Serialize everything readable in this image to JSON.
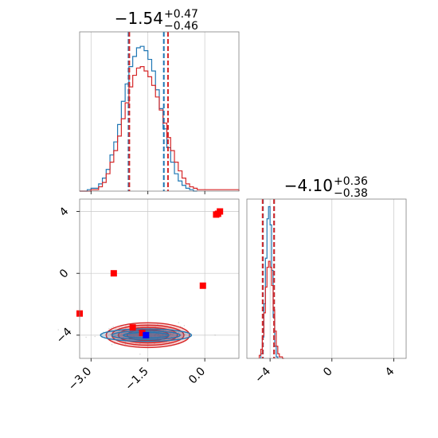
{
  "figure": {
    "kind": "corner-plot"
  },
  "titles": {
    "p1": {
      "median": "−1.54",
      "upper": "+0.47",
      "lower": "−0.46"
    },
    "p2": {
      "median": "−4.10",
      "upper": "+0.36",
      "lower": "−0.38"
    }
  },
  "colors": {
    "blue": "#1f77b4",
    "red": "#d62728",
    "marker_red": "#ff0000",
    "marker_blue": "#0000ff",
    "grid": "#c8c8c8",
    "frame": "#808080"
  },
  "chart_data": [
    {
      "type": "histogram",
      "panel": "p1-marginal",
      "xlim": [
        -3.3,
        0.9
      ],
      "xticks": [
        -3.0,
        -1.5,
        0.0
      ],
      "grid": true,
      "series": [
        {
          "color": "#1f77b4",
          "bin_edges": [
            -3.3,
            -3.2,
            -3.1,
            -3.0,
            -2.9,
            -2.8,
            -2.7,
            -2.6,
            -2.5,
            -2.4,
            -2.3,
            -2.2,
            -2.1,
            -2.0,
            -1.9,
            -1.8,
            -1.7,
            -1.6,
            -1.5,
            -1.4,
            -1.3,
            -1.2,
            -1.1,
            -1.0,
            -0.9,
            -0.8,
            -0.7,
            -0.6,
            -0.5,
            -0.4,
            -0.3,
            -0.2
          ],
          "counts": [
            0,
            0,
            0.01,
            0.02,
            0.02,
            0.05,
            0.09,
            0.15,
            0.25,
            0.34,
            0.46,
            0.62,
            0.74,
            0.86,
            0.93,
            0.99,
            1.0,
            0.97,
            0.91,
            0.83,
            0.7,
            0.57,
            0.43,
            0.3,
            0.2,
            0.12,
            0.07,
            0.04,
            0.02,
            0.01,
            0
          ]
        },
        {
          "color": "#d62728",
          "bin_edges": [
            -3.3,
            -3.2,
            -3.1,
            -3.0,
            -2.9,
            -2.8,
            -2.7,
            -2.6,
            -2.5,
            -2.4,
            -2.3,
            -2.2,
            -2.1,
            -2.0,
            -1.9,
            -1.8,
            -1.7,
            -1.6,
            -1.5,
            -1.4,
            -1.3,
            -1.2,
            -1.1,
            -1.0,
            -0.9,
            -0.8,
            -0.7,
            -0.6,
            -0.5,
            -0.4,
            -0.3,
            -0.2,
            -0.1,
            0.0,
            0.1,
            0.2,
            0.3,
            0.4,
            0.5,
            0.6,
            0.7,
            0.8,
            0.9
          ],
          "counts": [
            0,
            0,
            0,
            0.01,
            0.01,
            0.03,
            0.06,
            0.12,
            0.2,
            0.28,
            0.38,
            0.5,
            0.61,
            0.72,
            0.8,
            0.85,
            0.86,
            0.83,
            0.79,
            0.73,
            0.65,
            0.56,
            0.47,
            0.37,
            0.28,
            0.2,
            0.14,
            0.09,
            0.05,
            0.03,
            0.02,
            0.01,
            0.01,
            0.01,
            0.01,
            0.01,
            0.01,
            0.01,
            0.01,
            0.01,
            0.01,
            0.01
          ]
        }
      ],
      "quantile_lines": [
        {
          "color": "#1f77b4",
          "x": [
            -2.01,
            -1.08
          ]
        },
        {
          "color": "#d62728",
          "x": [
            -1.99,
            -0.97
          ]
        }
      ]
    },
    {
      "type": "histogram",
      "panel": "p2-marginal",
      "xlim": [
        -5.5,
        4.8
      ],
      "xticks": [
        -4,
        0,
        4
      ],
      "grid": true,
      "series": [
        {
          "color": "#1f77b4",
          "bin_edges": [
            -4.6,
            -4.5,
            -4.4,
            -4.3,
            -4.2,
            -4.1,
            -4.0,
            -3.9,
            -3.8,
            -3.7,
            -3.6,
            -3.5
          ],
          "counts": [
            0.03,
            0.14,
            0.36,
            0.66,
            0.92,
            1.0,
            0.88,
            0.58,
            0.27,
            0.08,
            0.01
          ]
        },
        {
          "color": "#d62728",
          "bin_edges": [
            -4.7,
            -4.6,
            -4.5,
            -4.4,
            -4.3,
            -4.2,
            -4.1,
            -4.0,
            -3.9,
            -3.8,
            -3.7,
            -3.6,
            -3.5,
            -3.4,
            -3.3,
            -3.2,
            -3.1
          ],
          "counts": [
            0.02,
            0.06,
            0.15,
            0.3,
            0.47,
            0.6,
            0.64,
            0.6,
            0.48,
            0.32,
            0.18,
            0.08,
            0.03,
            0.01,
            0.01,
            0
          ]
        }
      ],
      "quantile_lines": [
        {
          "color": "#1f77b4",
          "x": [
            -4.46,
            -3.74
          ]
        },
        {
          "color": "#d62728",
          "x": [
            -4.48,
            -3.74
          ]
        }
      ]
    },
    {
      "type": "scatter",
      "panel": "joint",
      "xlim": [
        -3.3,
        0.9
      ],
      "ylim": [
        -5.5,
        4.8
      ],
      "xticks": [
        -3.0,
        -1.5,
        0.0
      ],
      "yticks": [
        -4,
        0,
        4
      ],
      "grid": true,
      "contours": [
        {
          "color": "#d62728",
          "center": [
            -1.5,
            -4.0
          ],
          "radii": [
            [
              1.1,
              0.8
            ],
            [
              0.95,
              0.65
            ],
            [
              0.78,
              0.5
            ],
            [
              0.55,
              0.35
            ]
          ]
        },
        {
          "color": "#1f77b4",
          "center": [
            -1.55,
            -4.0
          ],
          "radii": [
            [
              1.2,
              0.4
            ],
            [
              0.9,
              0.28
            ],
            [
              0.6,
              0.18
            ]
          ]
        }
      ],
      "markers": [
        {
          "color": "#ff0000",
          "x": 0.3,
          "y": 3.8
        },
        {
          "color": "#ff0000",
          "x": 0.4,
          "y": 4.0
        },
        {
          "color": "#ff0000",
          "x": 0.35,
          "y": 3.85
        },
        {
          "color": "#ff0000",
          "x": -2.4,
          "y": 0.0
        },
        {
          "color": "#ff0000",
          "x": -0.05,
          "y": -0.8
        },
        {
          "color": "#ff0000",
          "x": -3.3,
          "y": -2.6
        },
        {
          "color": "#ff0000",
          "x": -1.9,
          "y": -3.5
        },
        {
          "color": "#ff0000",
          "x": -1.65,
          "y": -3.85
        },
        {
          "color": "#0000ff",
          "x": -1.55,
          "y": -4.0
        }
      ]
    }
  ]
}
